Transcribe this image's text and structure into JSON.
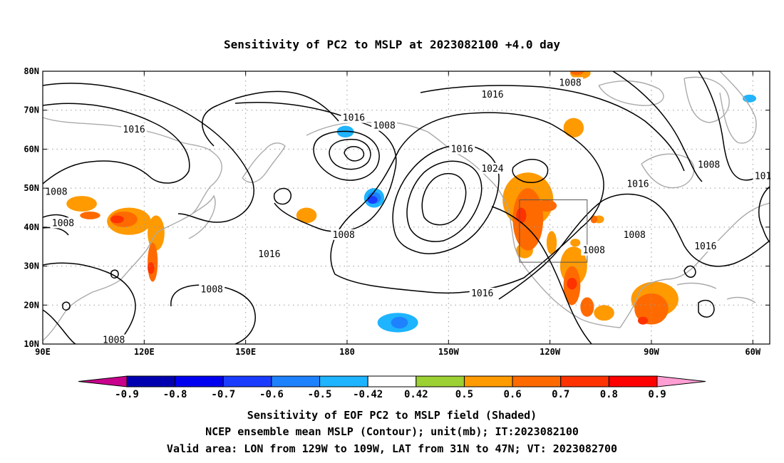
{
  "title": "Sensitivity of PC2 to MSLP at 2023082100 +4.0 day",
  "map": {
    "lon_range": [
      90,
      305
    ],
    "lat_range": [
      10,
      80
    ],
    "lon_ticks": [
      {
        "lon": 90,
        "label": "90E"
      },
      {
        "lon": 120,
        "label": "120E"
      },
      {
        "lon": 150,
        "label": "150E"
      },
      {
        "lon": 180,
        "label": "180"
      },
      {
        "lon": 210,
        "label": "150W"
      },
      {
        "lon": 240,
        "label": "120W"
      },
      {
        "lon": 270,
        "label": "90W"
      },
      {
        "lon": 300,
        "label": "60W"
      }
    ],
    "lat_ticks": [
      {
        "lat": 10,
        "label": "10N"
      },
      {
        "lat": 20,
        "label": "20N"
      },
      {
        "lat": 30,
        "label": "30N"
      },
      {
        "lat": 40,
        "label": "40N"
      },
      {
        "lat": 50,
        "label": "50N"
      },
      {
        "lat": 60,
        "label": "60N"
      },
      {
        "lat": 70,
        "label": "70N"
      },
      {
        "lat": 80,
        "label": "80N"
      }
    ],
    "grid": "dotted",
    "valid_box": {
      "lon": [
        231,
        251
      ],
      "lat": [
        31,
        47
      ]
    },
    "contour_labels": [
      {
        "text": "1008",
        "lon": 246,
        "lat": 77
      },
      {
        "text": "1016",
        "lon": 223,
        "lat": 74
      },
      {
        "text": "1016",
        "lon": 182,
        "lat": 68
      },
      {
        "text": "1008",
        "lon": 191,
        "lat": 66
      },
      {
        "text": "1016",
        "lon": 117,
        "lat": 65
      },
      {
        "text": "1016",
        "lon": 214,
        "lat": 60
      },
      {
        "text": "1024",
        "lon": 223,
        "lat": 55
      },
      {
        "text": "1016",
        "lon": 266,
        "lat": 51
      },
      {
        "text": "1008",
        "lon": 287,
        "lat": 56
      },
      {
        "text": "101",
        "lon": 303,
        "lat": 53
      },
      {
        "text": "1008",
        "lon": 94,
        "lat": 49
      },
      {
        "text": "1008",
        "lon": 96,
        "lat": 41
      },
      {
        "text": "1008",
        "lon": 179,
        "lat": 38
      },
      {
        "text": "1008",
        "lon": 265,
        "lat": 38
      },
      {
        "text": "1016",
        "lon": 286,
        "lat": 35
      },
      {
        "text": "1016",
        "lon": 157,
        "lat": 33
      },
      {
        "text": "1008",
        "lon": 253,
        "lat": 34
      },
      {
        "text": "1016",
        "lon": 220,
        "lat": 23
      },
      {
        "text": "1008",
        "lon": 140,
        "lat": 24
      },
      {
        "text": "1008",
        "lon": 111,
        "lat": 11
      }
    ],
    "shading": [
      {
        "bin": 0.5,
        "cells": [
          [
            246,
            78,
            6,
            3
          ],
          [
            244,
            63,
            6,
            5
          ],
          [
            97,
            44,
            9,
            4
          ],
          [
            109,
            38,
            13,
            7
          ],
          [
            121,
            34,
            5,
            9
          ],
          [
            165,
            41,
            6,
            4
          ],
          [
            226,
            40,
            15,
            14
          ],
          [
            239,
            33,
            3,
            6
          ],
          [
            243,
            25,
            8,
            10
          ],
          [
            264,
            17,
            14,
            9
          ],
          [
            253,
            41,
            3,
            2
          ],
          [
            253,
            16,
            6,
            4
          ],
          [
            230,
            32,
            5,
            4
          ],
          [
            246,
            35,
            3,
            2
          ]
        ]
      },
      {
        "bin": 0.6,
        "cells": [
          [
            246,
            79,
            4,
            2
          ],
          [
            101,
            42,
            6,
            2
          ],
          [
            110,
            40,
            8,
            4
          ],
          [
            121,
            26,
            3,
            10
          ],
          [
            229,
            34,
            9,
            16
          ],
          [
            236,
            44,
            6,
            3
          ],
          [
            244,
            20,
            5,
            10
          ],
          [
            249,
            17,
            4,
            5
          ],
          [
            265,
            15,
            10,
            8
          ],
          [
            252,
            41,
            2,
            2
          ]
        ]
      },
      {
        "bin": 0.7,
        "cells": [
          [
            110,
            41,
            4,
            2
          ],
          [
            121,
            28,
            2,
            3
          ],
          [
            230,
            41,
            3,
            4
          ],
          [
            245,
            24,
            3,
            3
          ],
          [
            266,
            15,
            3,
            2
          ]
        ]
      },
      {
        "bin": -0.42,
        "cells": [
          [
            90,
            61,
            10,
            5
          ],
          [
            107,
            62,
            6,
            4
          ],
          [
            156,
            52,
            3,
            3
          ],
          [
            162,
            62,
            11,
            4
          ],
          [
            174,
            61,
            9,
            6
          ],
          [
            182,
            46,
            8,
            7
          ],
          [
            183,
            11,
            22,
            6
          ],
          [
            296,
            72,
            8,
            3
          ],
          [
            296,
            61,
            5,
            3
          ],
          [
            305,
            23,
            4,
            3
          ],
          [
            236,
            17,
            2,
            3
          ]
        ]
      },
      {
        "bin": -0.5,
        "cells": [
          [
            177,
            63,
            5,
            3
          ],
          [
            185,
            45,
            6,
            5
          ],
          [
            189,
            13,
            12,
            5
          ],
          [
            297,
            72,
            4,
            2
          ]
        ]
      },
      {
        "bin": -0.6,
        "cells": [
          [
            186,
            46,
            4,
            3
          ],
          [
            193,
            14,
            5,
            3
          ]
        ]
      },
      {
        "bin": -0.7,
        "cells": [
          [
            186,
            46,
            3,
            2
          ]
        ]
      }
    ]
  },
  "colorbar": {
    "bins": [
      {
        "value": -0.9,
        "color": "#0000b0"
      },
      {
        "value": -0.8,
        "color": "#0000f0"
      },
      {
        "value": -0.7,
        "color": "#1a3cff"
      },
      {
        "value": -0.6,
        "color": "#1e82ff"
      },
      {
        "value": -0.5,
        "color": "#1eb4ff"
      },
      {
        "value": -0.42,
        "color": "#ffffff"
      },
      {
        "value": 0.42,
        "color": "#9bd133"
      },
      {
        "value": 0.5,
        "color": "#ff9a00"
      },
      {
        "value": 0.6,
        "color": "#ff6a00"
      },
      {
        "value": 0.7,
        "color": "#ff3200"
      },
      {
        "value": 0.8,
        "color": "#ff0000"
      }
    ],
    "under_color": "#c8008c",
    "over_color": "#ff9ed2",
    "tick_labels": [
      "-0.9",
      "-0.8",
      "-0.7",
      "-0.6",
      "-0.5",
      "-0.42",
      "0.42",
      "0.5",
      "0.6",
      "0.7",
      "0.8",
      "0.9"
    ]
  },
  "captions": [
    "Sensitivity of EOF PC2 to MSLP field (Shaded)",
    "NCEP ensemble mean MSLP (Contour); unit(mb); IT:2023082100",
    "Valid area: LON from 129W to 109W, LAT from 31N to 47N; VT: 2023082700"
  ]
}
